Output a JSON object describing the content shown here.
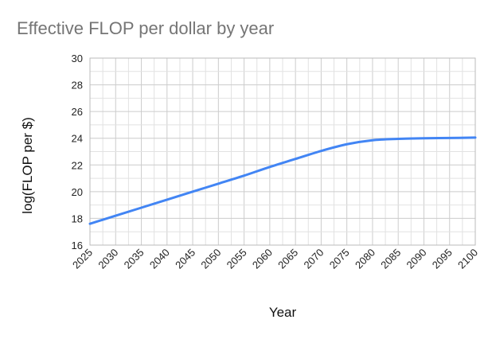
{
  "chart_data": {
    "type": "line",
    "title": "Effective FLOP per dollar by year",
    "xlabel": "Year",
    "ylabel": "log(FLOP per $)",
    "xlim": [
      2025,
      2100
    ],
    "ylim": [
      16,
      30
    ],
    "x_ticks": [
      "2025",
      "2030",
      "2035",
      "2040",
      "2045",
      "2050",
      "2055",
      "2060",
      "2065",
      "2070",
      "2075",
      "2080",
      "2085",
      "2090",
      "2095",
      "2100"
    ],
    "y_ticks": [
      "16",
      "18",
      "20",
      "22",
      "24",
      "26",
      "28",
      "30"
    ],
    "grid": true,
    "legend": "none",
    "series": [
      {
        "color": "#4285f4",
        "x": [
          2025,
          2030,
          2035,
          2040,
          2045,
          2050,
          2055,
          2060,
          2065,
          2070,
          2075,
          2080,
          2085,
          2090,
          2095,
          2100
        ],
        "values": [
          17.6,
          18.2,
          18.8,
          19.4,
          20.0,
          20.6,
          21.2,
          21.85,
          22.45,
          23.05,
          23.55,
          23.85,
          23.95,
          24.0,
          24.02,
          24.05
        ]
      }
    ]
  }
}
